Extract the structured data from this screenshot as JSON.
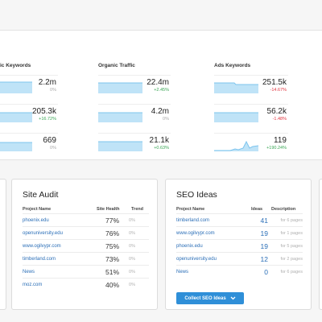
{
  "metrics": {
    "columns": [
      {
        "label": "ic Keywords"
      },
      {
        "label": "Organic Traffic"
      },
      {
        "label": "Ads Keywords"
      }
    ],
    "rows": [
      [
        {
          "value": "2.2m",
          "change": "0%",
          "trend": "neutral"
        },
        {
          "value": "22.4m",
          "change": "+2.45%",
          "trend": "up"
        },
        {
          "value": "251.5k",
          "change": "-14.67%",
          "trend": "down"
        }
      ],
      [
        {
          "value": "205.3k",
          "change": "+16.72%",
          "trend": "up"
        },
        {
          "value": "4.2m",
          "change": "0%",
          "trend": "neutral"
        },
        {
          "value": "56.2k",
          "change": "-1.48%",
          "trend": "down"
        }
      ],
      [
        {
          "value": "669",
          "change": "0%",
          "trend": "neutral"
        },
        {
          "value": "21.1k",
          "change": "+0.63%",
          "trend": "up"
        },
        {
          "value": "119",
          "change": "+190.24%",
          "trend": "up"
        }
      ]
    ]
  },
  "site_audit": {
    "title": "Site Audit",
    "headers": {
      "project": "Project Name",
      "health": "Site Health",
      "trend": "Trend"
    },
    "rows": [
      {
        "project": "phoenix.edu",
        "health": "77%",
        "trend": "0%"
      },
      {
        "project": "openuniversity.edu",
        "health": "76%",
        "trend": "0%"
      },
      {
        "project": "www.ogilvypr.com",
        "health": "75%",
        "trend": "0%"
      },
      {
        "project": "timberland.com",
        "health": "73%",
        "trend": "0%"
      },
      {
        "project": "News",
        "health": "51%",
        "trend": "0%"
      },
      {
        "project": "moz.com",
        "health": "40%",
        "trend": "0%"
      }
    ]
  },
  "seo_ideas": {
    "title": "SEO Ideas",
    "headers": {
      "project": "Project Name",
      "ideas": "Ideas",
      "description": "Description"
    },
    "rows": [
      {
        "project": "timberland.com",
        "ideas": "41",
        "description": "for 6 pages"
      },
      {
        "project": "www.ogilvypr.com",
        "ideas": "19",
        "description": "for 1 pages"
      },
      {
        "project": "phoenix.edu",
        "ideas": "19",
        "description": "for 5 pages"
      },
      {
        "project": "openuniversity.edu",
        "ideas": "12",
        "description": "for 2 pages"
      },
      {
        "project": "News",
        "ideas": "0",
        "description": "for 6 pages"
      }
    ],
    "button_label": "Collect SEO Ideas",
    "button_icon": "chevron-down-icon"
  },
  "colors": {
    "link": "#2a6eb7",
    "positive": "#3aa655",
    "negative": "#e0343f",
    "sparkline_fill": "#bfe3f7",
    "sparkline_line": "#7cc4ee",
    "button": "#2f8fd8"
  }
}
